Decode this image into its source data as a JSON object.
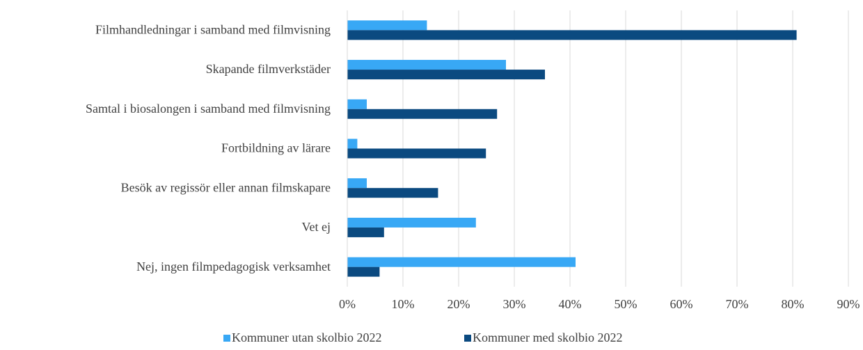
{
  "chart_data": {
    "type": "barh",
    "categories": [
      "Filmhandledningar i samband med filmvisning",
      "Skapande filmverkstäder",
      "Samtal i biosalongen i samband med filmvisning",
      "Fortbildning av lärare",
      "Besök av regissör eller annan filmskapare",
      "Vet ej",
      "Nej, ingen filmpedagogisk verksamhet"
    ],
    "series": [
      {
        "name": "Kommuner utan skolbio 2022",
        "color": "#38a8f5",
        "values": [
          14.3,
          28.5,
          3.5,
          1.8,
          3.5,
          23.1,
          41.0
        ]
      },
      {
        "name": "Kommuner med skolbio 2022",
        "color": "#0b4a80",
        "values": [
          80.7,
          35.5,
          26.9,
          24.9,
          16.3,
          6.6,
          5.8
        ]
      }
    ],
    "xlim": [
      0,
      90
    ],
    "xticks": [
      {
        "value": 0,
        "label": "0%"
      },
      {
        "value": 10,
        "label": "10%"
      },
      {
        "value": 20,
        "label": "20%"
      },
      {
        "value": 30,
        "label": "30%"
      },
      {
        "value": 40,
        "label": "40%"
      },
      {
        "value": 50,
        "label": "50%"
      },
      {
        "value": 60,
        "label": "60%"
      },
      {
        "value": 70,
        "label": "70%"
      },
      {
        "value": 80,
        "label": "80%"
      },
      {
        "value": 90,
        "label": "90%"
      }
    ],
    "grid": true,
    "legend": "bottom"
  }
}
